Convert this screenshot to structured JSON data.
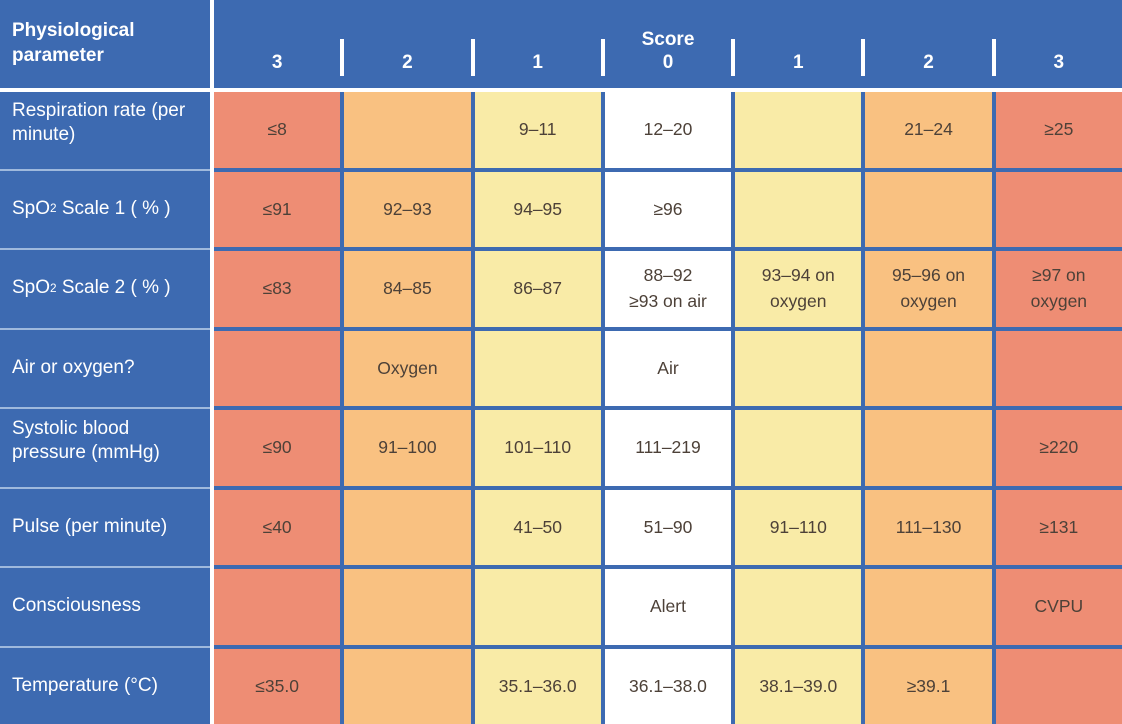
{
  "colors": {
    "table_blue": "#3d6ab1",
    "score_3": "#ee8d74",
    "score_2": "#f9c181",
    "score_1": "#f9eba7",
    "score_0": "#ffffff",
    "cell_text": "#4d4138",
    "header_text": "#ffffff",
    "divider_light": "#9fb9dd",
    "line_white": "#ffffff"
  },
  "chart_data": {
    "type": "table",
    "title": "",
    "legend": {
      "severity_colors": {
        "score_3": "red",
        "score_2": "orange",
        "score_1": "yellow",
        "score_0": "white"
      }
    },
    "header": {
      "param_label": "Physiological\nparameter",
      "score_title": "Score",
      "score_columns": [
        "3",
        "2",
        "1",
        "0",
        "1",
        "2",
        "3"
      ]
    },
    "rows": [
      {
        "label_pre": "Respiration rate (per minute)",
        "label_sub": "",
        "label_post": "",
        "cells": [
          "≤8",
          "",
          "9–11",
          "12–20",
          "",
          "21–24",
          "≥25"
        ]
      },
      {
        "label_pre": "SpO",
        "label_sub": "2",
        "label_post": " Scale 1 ( % )",
        "cells": [
          "≤91",
          "92–93",
          "94–95",
          "≥96",
          "",
          "",
          ""
        ]
      },
      {
        "label_pre": "SpO",
        "label_sub": "2",
        "label_post": " Scale 2 ( % )",
        "cells": [
          "≤83",
          "84–85",
          "86–87",
          "88–92\n≥93 on air",
          "93–94 on\noxygen",
          "95–96 on\noxygen",
          "≥97 on\noxygen"
        ]
      },
      {
        "label_pre": "Air or oxygen?",
        "label_sub": "",
        "label_post": "",
        "cells": [
          "",
          "Oxygen",
          "",
          "Air",
          "",
          "",
          ""
        ]
      },
      {
        "label_pre": "Systolic blood pressure (mmHg)",
        "label_sub": "",
        "label_post": "",
        "cells": [
          "≤90",
          "91–100",
          "101–110",
          "111–219",
          "",
          "",
          "≥220"
        ]
      },
      {
        "label_pre": "Pulse (per minute)",
        "label_sub": "",
        "label_post": "",
        "cells": [
          "≤40",
          "",
          "41–50",
          "51–90",
          "91–110",
          "111–130",
          "≥131"
        ]
      },
      {
        "label_pre": "Consciousness",
        "label_sub": "",
        "label_post": "",
        "cells": [
          "",
          "",
          "",
          "Alert",
          "",
          "",
          "CVPU"
        ]
      },
      {
        "label_pre": "Temperature (°C)",
        "label_sub": "",
        "label_post": "",
        "cells": [
          "≤35.0",
          "",
          "35.1–36.0",
          "36.1–38.0",
          "38.1–39.0",
          "≥39.1",
          ""
        ]
      }
    ]
  }
}
